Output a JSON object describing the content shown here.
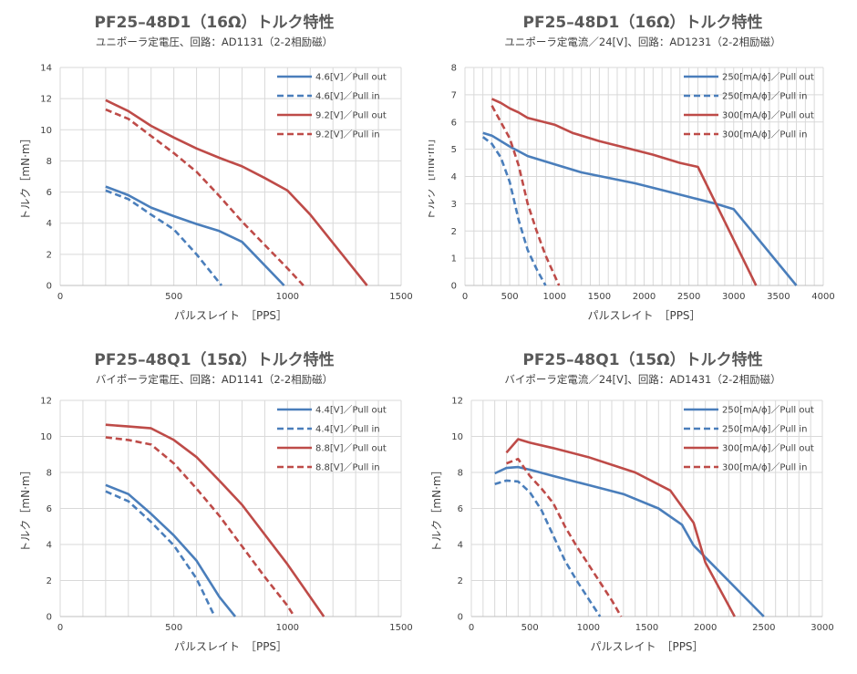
{
  "colors": {
    "blue": "#4a7ebb",
    "red": "#be4b48",
    "grid": "#d9d9d9",
    "axis": "#bfbfbf"
  },
  "chart_data": [
    {
      "type": "line",
      "title": "PF25–48D1（16Ω）トルク特性",
      "subtitle": "ユニポーラ定電圧、回路：AD1131（2-2相励磁）",
      "xlabel": "パルスレイト　［PPS］",
      "ylabel": "トルク［mN·m］",
      "xlim": [
        0,
        1500
      ],
      "ylim": [
        0,
        14
      ],
      "xticks": [
        0,
        500,
        1000,
        1500
      ],
      "yticks": [
        0,
        2,
        4,
        6,
        8,
        10,
        12,
        14
      ],
      "xgrid_step": 100,
      "ygrid_step": 2,
      "legend": "top-right",
      "series": [
        {
          "name": "4.6[V]／Pull out",
          "color": "blue",
          "dash": false,
          "x": [
            200,
            300,
            400,
            500,
            600,
            700,
            800,
            985
          ],
          "y": [
            6.35,
            5.8,
            5.0,
            4.45,
            3.95,
            3.5,
            2.8,
            0
          ]
        },
        {
          "name": "4.6[V]／Pull in",
          "color": "blue",
          "dash": true,
          "x": [
            200,
            300,
            400,
            500,
            600,
            710
          ],
          "y": [
            6.1,
            5.55,
            4.55,
            3.6,
            2.0,
            0
          ]
        },
        {
          "name": "9.2[V]／Pull out",
          "color": "red",
          "dash": false,
          "x": [
            200,
            300,
            400,
            500,
            600,
            700,
            800,
            900,
            1000,
            1100,
            1350
          ],
          "y": [
            11.9,
            11.2,
            10.25,
            9.5,
            8.8,
            8.2,
            7.65,
            6.9,
            6.1,
            4.55,
            0
          ]
        },
        {
          "name": "9.2[V]／Pull in",
          "color": "red",
          "dash": true,
          "x": [
            200,
            300,
            400,
            500,
            600,
            700,
            800,
            900,
            1000,
            1070
          ],
          "y": [
            11.3,
            10.7,
            9.6,
            8.5,
            7.3,
            5.75,
            4.1,
            2.6,
            1.1,
            0
          ]
        }
      ]
    },
    {
      "type": "line",
      "title": "PF25–48D1（16Ω）トルク特性",
      "subtitle": "ユニポーラ定電流／24[V]、回路：AD1231（2-2相励磁）",
      "xlabel": "パルスレイト　［PPS］",
      "ylabel": "トルク［mN·m］",
      "xlim": [
        0,
        4000
      ],
      "ylim": [
        0,
        8
      ],
      "xticks": [
        0,
        500,
        1000,
        1500,
        2000,
        2500,
        3000,
        3500,
        4000
      ],
      "yticks": [
        0,
        1,
        2,
        3,
        4,
        5,
        6,
        7,
        8
      ],
      "xgrid_step": 100,
      "ygrid_step": 1,
      "legend": "top-right",
      "series": [
        {
          "name": "250[mA/ϕ]／Pull out",
          "color": "blue",
          "dash": false,
          "x": [
            200,
            300,
            500,
            700,
            1000,
            1300,
            1600,
            1900,
            2200,
            2500,
            2800,
            3000,
            3700
          ],
          "y": [
            5.6,
            5.5,
            5.1,
            4.75,
            4.45,
            4.15,
            3.95,
            3.75,
            3.5,
            3.25,
            3.0,
            2.8,
            0
          ]
        },
        {
          "name": "250[mA/ϕ]／Pull in",
          "color": "blue",
          "dash": true,
          "x": [
            200,
            300,
            400,
            500,
            600,
            700,
            800,
            900
          ],
          "y": [
            5.45,
            5.2,
            4.7,
            3.8,
            2.4,
            1.3,
            0.6,
            0
          ]
        },
        {
          "name": "300[mA/ϕ]／Pull out",
          "color": "red",
          "dash": false,
          "x": [
            300,
            400,
            500,
            600,
            700,
            1000,
            1200,
            1500,
            1800,
            2100,
            2400,
            2600,
            3250
          ],
          "y": [
            6.85,
            6.7,
            6.5,
            6.35,
            6.15,
            5.9,
            5.6,
            5.3,
            5.05,
            4.8,
            4.5,
            4.35,
            0
          ]
        },
        {
          "name": "300[mA/ϕ]／Pull in",
          "color": "red",
          "dash": true,
          "x": [
            300,
            400,
            500,
            600,
            700,
            800,
            900,
            1050
          ],
          "y": [
            6.6,
            6.0,
            5.4,
            4.4,
            3.0,
            2.0,
            1.1,
            0
          ]
        }
      ]
    },
    {
      "type": "line",
      "title": "PF25–48Q1（15Ω）トルク特性",
      "subtitle": "バイポーラ定電圧、回路：AD1141（2-2相励磁）",
      "xlabel": "パルスレイト　［PPS］",
      "ylabel": "トルク［mN·m］",
      "xlim": [
        0,
        1500
      ],
      "ylim": [
        0,
        12
      ],
      "xticks": [
        0,
        500,
        1000,
        1500
      ],
      "yticks": [
        0,
        2,
        4,
        6,
        8,
        10,
        12
      ],
      "xgrid_step": 100,
      "ygrid_step": 2,
      "legend": "top-right",
      "series": [
        {
          "name": "4.4[V]／Pull out",
          "color": "blue",
          "dash": false,
          "x": [
            200,
            300,
            400,
            500,
            600,
            700,
            770
          ],
          "y": [
            7.3,
            6.8,
            5.7,
            4.5,
            3.1,
            1.1,
            0
          ]
        },
        {
          "name": "4.4[V]／Pull in",
          "color": "blue",
          "dash": true,
          "x": [
            200,
            300,
            400,
            500,
            600,
            680
          ],
          "y": [
            6.95,
            6.4,
            5.25,
            3.95,
            2.1,
            0
          ]
        },
        {
          "name": "8.8[V]／Pull out",
          "color": "red",
          "dash": false,
          "x": [
            200,
            300,
            400,
            500,
            600,
            700,
            800,
            1000,
            1160
          ],
          "y": [
            10.65,
            10.55,
            10.45,
            9.8,
            8.85,
            7.55,
            6.2,
            2.9,
            0
          ]
        },
        {
          "name": "8.8[V]／Pull in",
          "color": "red",
          "dash": true,
          "x": [
            200,
            300,
            400,
            500,
            600,
            700,
            800,
            900,
            1000,
            1030
          ],
          "y": [
            9.95,
            9.8,
            9.55,
            8.5,
            7.1,
            5.6,
            3.9,
            2.2,
            0.6,
            0
          ]
        }
      ]
    },
    {
      "type": "line",
      "title": "PF25–48Q1（15Ω）トルク特性",
      "subtitle": "バイポーラ定電流／24[V]、回路：AD1431（2-2相励磁）",
      "xlabel": "パルスレイト　［PPS］",
      "ylabel": "トルク［mN·m］",
      "xlim": [
        0,
        3000
      ],
      "ylim": [
        0,
        12
      ],
      "xticks": [
        0,
        500,
        1000,
        1500,
        2000,
        2500,
        3000
      ],
      "yticks": [
        0,
        2,
        4,
        6,
        8,
        10,
        12
      ],
      "xgrid_step": 100,
      "ygrid_step": 2,
      "legend": "top-right",
      "series": [
        {
          "name": "250[mA/ϕ]／Pull out",
          "color": "blue",
          "dash": false,
          "x": [
            200,
            300,
            400,
            500,
            700,
            1000,
            1300,
            1600,
            1800,
            1900,
            2500
          ],
          "y": [
            7.95,
            8.25,
            8.3,
            8.15,
            7.8,
            7.3,
            6.8,
            6.0,
            5.1,
            3.95,
            0
          ]
        },
        {
          "name": "250[mA/ϕ]／Pull in",
          "color": "blue",
          "dash": true,
          "x": [
            200,
            300,
            400,
            500,
            600,
            700,
            800,
            900,
            1000,
            1100
          ],
          "y": [
            7.35,
            7.55,
            7.5,
            6.9,
            5.9,
            4.5,
            3.1,
            2.0,
            1.0,
            0
          ]
        },
        {
          "name": "300[mA/ϕ]／Pull out",
          "color": "red",
          "dash": false,
          "x": [
            300,
            400,
            500,
            700,
            1000,
            1400,
            1700,
            1900,
            2000,
            2250
          ],
          "y": [
            9.1,
            9.85,
            9.65,
            9.35,
            8.85,
            8.0,
            7.0,
            5.2,
            3.0,
            0
          ]
        },
        {
          "name": "300[mA/ϕ]／Pull in",
          "color": "red",
          "dash": true,
          "x": [
            300,
            400,
            500,
            600,
            700,
            800,
            900,
            1000,
            1100,
            1200,
            1280
          ],
          "y": [
            8.5,
            8.75,
            7.8,
            7.1,
            6.3,
            5.0,
            3.9,
            2.9,
            1.9,
            0.9,
            0
          ]
        }
      ]
    }
  ]
}
